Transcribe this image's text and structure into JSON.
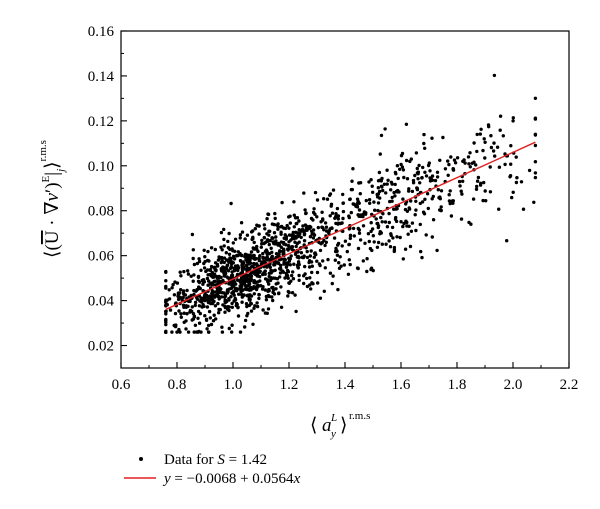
{
  "chart_data": {
    "type": "scatter",
    "xlim": [
      0.6,
      2.2
    ],
    "ylim": [
      0.01,
      0.16
    ],
    "x_ticks": [
      "0.6",
      "0.8",
      "1.0",
      "1.2",
      "1.4",
      "1.6",
      "1.8",
      "2.0",
      "2.2"
    ],
    "y_ticks": [
      "0.02",
      "0.04",
      "0.06",
      "0.08",
      "0.10",
      "0.12",
      "0.14",
      "0.16"
    ],
    "xlabel": "⟨a_y^L⟩ r.m.s",
    "ylabel": "⟨(Ū · ∇v′)^E |_j⟩ r.m.s",
    "grid": false,
    "legend_position": "below",
    "series": [
      {
        "name": "Data for S = 1.42",
        "kind": "scatter",
        "color": "#000000",
        "n_points": 1500,
        "x_range": [
          0.76,
          2.08
        ],
        "y_range": [
          0.026,
          0.142
        ],
        "trend_intercept": -0.0068,
        "trend_slope": 0.0564
      },
      {
        "name": "y = −0.0068 + 0.0564x",
        "kind": "line",
        "color": "#e02020",
        "intercept": -0.0068,
        "slope": 0.0564,
        "x_range": [
          0.76,
          2.08
        ]
      }
    ]
  },
  "axes": {
    "x_label_main": "a",
    "x_label_sup": "L",
    "x_label_sub": "y",
    "x_label_rms": "r.m.s",
    "y_label_rms": "r.m.s",
    "y_label_E": "E",
    "y_label_j": "j"
  },
  "legend": {
    "scatter_text_prefix": "Data for ",
    "scatter_symbol": "S",
    "scatter_text_suffix": " = 1.42",
    "line_text_y": "y",
    "line_text_middle": " = −0.0068 + 0.0564",
    "line_text_x": "x"
  },
  "colors": {
    "points": "#000000",
    "fit_line": "#e02020",
    "axes": "#000000"
  }
}
